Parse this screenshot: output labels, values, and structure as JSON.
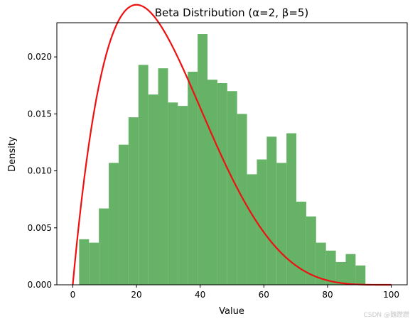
{
  "chart_data": {
    "type": "bar",
    "title": "Beta Distribution (α=2, β=5)",
    "xlabel": "Value",
    "ylabel": "Density",
    "xlim": [
      -5,
      105
    ],
    "ylim": [
      0,
      0.023
    ],
    "xticks": [
      0,
      20,
      40,
      60,
      80,
      100
    ],
    "yticks": [
      0.0,
      0.005,
      0.01,
      0.015,
      0.02
    ],
    "grid": false,
    "histogram": {
      "name": "",
      "color": "#66b266",
      "bin_edges": [
        2.0,
        5.1,
        8.2,
        11.3,
        14.4,
        17.5,
        20.6,
        23.7,
        26.8,
        29.9,
        33.0,
        36.1,
        39.2,
        42.3,
        45.4,
        48.5,
        51.6,
        54.7,
        57.8,
        60.9,
        64.0,
        67.1,
        70.2,
        73.3,
        76.4,
        79.5,
        82.6,
        85.7,
        88.8,
        91.9
      ],
      "values": [
        0.004,
        0.0037,
        0.0067,
        0.0107,
        0.0123,
        0.0147,
        0.0193,
        0.0167,
        0.019,
        0.016,
        0.0157,
        0.0187,
        0.022,
        0.018,
        0.0177,
        0.017,
        0.015,
        0.0097,
        0.011,
        0.013,
        0.0107,
        0.0133,
        0.0073,
        0.006,
        0.0037,
        0.003,
        0.002,
        0.0027,
        0.0017
      ]
    },
    "curve": {
      "name": "",
      "color": "#ee1111",
      "function": "beta_pdf_scaled",
      "alpha": 2,
      "beta": 5,
      "x_range": [
        0,
        100
      ]
    }
  },
  "watermark": "CSDN @魏躜躜"
}
